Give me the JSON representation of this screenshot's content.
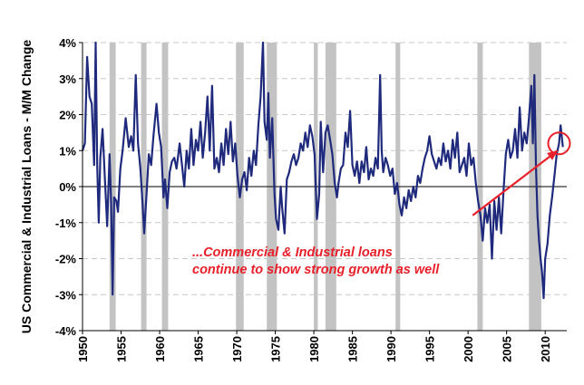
{
  "chart_data": {
    "type": "line",
    "ylabel": "US Commercial & Industrial Loans - M/M Change",
    "xlabel": "",
    "xlim": [
      1950,
      2012.8
    ],
    "ylim": [
      -4,
      4
    ],
    "x_ticks": [
      "1950",
      "1955",
      "1960",
      "1965",
      "1970",
      "1975",
      "1980",
      "1985",
      "1990",
      "1995",
      "2000",
      "2005",
      "2010"
    ],
    "y_ticks": [
      "4%",
      "3%",
      "2%",
      "1%",
      "0%",
      "-1%",
      "-2%",
      "-3%",
      "-4%"
    ],
    "grid": true,
    "line_color": "#1f2a7c",
    "recession_color": "#c3c3c3",
    "annotation_color": "#e8202a",
    "recessions": [
      [
        1953.5,
        1954.3
      ],
      [
        1957.6,
        1958.3
      ],
      [
        1960.3,
        1961.1
      ],
      [
        1969.9,
        1970.9
      ],
      [
        1973.9,
        1975.2
      ],
      [
        1980.0,
        1980.5
      ],
      [
        1981.5,
        1982.9
      ],
      [
        1990.6,
        1991.2
      ],
      [
        2001.2,
        2001.9
      ],
      [
        2007.9,
        2009.5
      ]
    ],
    "series": [
      {
        "values": [
          [
            1950.0,
            1.0
          ],
          [
            1950.3,
            1.2
          ],
          [
            1950.6,
            3.6
          ],
          [
            1950.9,
            2.5
          ],
          [
            1951.2,
            2.3
          ],
          [
            1951.5,
            0.6
          ],
          [
            1951.7,
            4.0
          ],
          [
            1951.9,
            0.6
          ],
          [
            1952.1,
            -1.0
          ],
          [
            1952.3,
            0.8
          ],
          [
            1952.6,
            1.6
          ],
          [
            1952.9,
            0.2
          ],
          [
            1953.2,
            -1.1
          ],
          [
            1953.5,
            0.9
          ],
          [
            1953.7,
            -0.4
          ],
          [
            1953.9,
            -3.0
          ],
          [
            1954.1,
            -0.3
          ],
          [
            1954.4,
            -0.4
          ],
          [
            1954.6,
            -0.7
          ],
          [
            1954.9,
            0.5
          ],
          [
            1955.2,
            1.0
          ],
          [
            1955.6,
            1.9
          ],
          [
            1956.0,
            1.1
          ],
          [
            1956.3,
            1.4
          ],
          [
            1956.6,
            1.0
          ],
          [
            1956.9,
            3.1
          ],
          [
            1957.2,
            1.2
          ],
          [
            1957.5,
            0.5
          ],
          [
            1957.8,
            -0.5
          ],
          [
            1958.0,
            -1.3
          ],
          [
            1958.3,
            -0.2
          ],
          [
            1958.6,
            0.9
          ],
          [
            1958.9,
            0.6
          ],
          [
            1959.2,
            1.4
          ],
          [
            1959.6,
            2.3
          ],
          [
            1959.9,
            1.5
          ],
          [
            1960.2,
            1.1
          ],
          [
            1960.5,
            -0.3
          ],
          [
            1960.7,
            0.2
          ],
          [
            1961.0,
            -0.6
          ],
          [
            1961.3,
            0.4
          ],
          [
            1961.6,
            0.7
          ],
          [
            1961.9,
            0.8
          ],
          [
            1962.2,
            0.5
          ],
          [
            1962.6,
            1.2
          ],
          [
            1962.9,
            0.6
          ],
          [
            1963.2,
            0.0
          ],
          [
            1963.5,
            1.0
          ],
          [
            1963.8,
            0.5
          ],
          [
            1964.1,
            1.6
          ],
          [
            1964.4,
            0.6
          ],
          [
            1964.7,
            1.3
          ],
          [
            1965.0,
            1.0
          ],
          [
            1965.3,
            1.8
          ],
          [
            1965.6,
            0.8
          ],
          [
            1965.9,
            1.5
          ],
          [
            1966.2,
            2.5
          ],
          [
            1966.5,
            1.0
          ],
          [
            1966.8,
            2.8
          ],
          [
            1967.1,
            0.5
          ],
          [
            1967.4,
            0.8
          ],
          [
            1967.7,
            0.4
          ],
          [
            1968.0,
            1.2
          ],
          [
            1968.3,
            0.6
          ],
          [
            1968.6,
            1.6
          ],
          [
            1968.9,
            0.9
          ],
          [
            1969.2,
            1.8
          ],
          [
            1969.5,
            0.7
          ],
          [
            1969.8,
            1.2
          ],
          [
            1970.1,
            0.3
          ],
          [
            1970.4,
            -0.3
          ],
          [
            1970.7,
            0.2
          ],
          [
            1971.0,
            0.4
          ],
          [
            1971.3,
            -0.1
          ],
          [
            1971.6,
            0.8
          ],
          [
            1971.9,
            0.3
          ],
          [
            1972.2,
            1.0
          ],
          [
            1972.5,
            0.6
          ],
          [
            1972.8,
            1.7
          ],
          [
            1973.1,
            2.5
          ],
          [
            1973.4,
            4.0
          ],
          [
            1973.6,
            1.8
          ],
          [
            1973.9,
            1.3
          ],
          [
            1974.1,
            2.6
          ],
          [
            1974.3,
            0.8
          ],
          [
            1974.6,
            1.9
          ],
          [
            1974.9,
            -0.2
          ],
          [
            1975.1,
            -0.9
          ],
          [
            1975.4,
            -1.2
          ],
          [
            1975.7,
            0.0
          ],
          [
            1975.9,
            -0.6
          ],
          [
            1976.2,
            -1.3
          ],
          [
            1976.5,
            0.2
          ],
          [
            1976.8,
            0.4
          ],
          [
            1977.1,
            0.7
          ],
          [
            1977.4,
            0.9
          ],
          [
            1977.7,
            0.6
          ],
          [
            1978.0,
            0.8
          ],
          [
            1978.3,
            1.2
          ],
          [
            1978.6,
            1.0
          ],
          [
            1978.9,
            1.5
          ],
          [
            1979.2,
            1.1
          ],
          [
            1979.5,
            1.7
          ],
          [
            1979.8,
            1.4
          ],
          [
            1980.1,
            0.9
          ],
          [
            1980.4,
            -0.9
          ],
          [
            1980.7,
            -0.2
          ],
          [
            1980.9,
            1.8
          ],
          [
            1981.2,
            0.4
          ],
          [
            1981.5,
            1.5
          ],
          [
            1981.8,
            1.7
          ],
          [
            1982.1,
            1.3
          ],
          [
            1982.4,
            0.9
          ],
          [
            1982.7,
            0.1
          ],
          [
            1983.0,
            -0.3
          ],
          [
            1983.2,
            0.1
          ],
          [
            1983.5,
            0.5
          ],
          [
            1983.8,
            0.6
          ],
          [
            1984.1,
            1.5
          ],
          [
            1984.4,
            1.1
          ],
          [
            1984.7,
            2.1
          ],
          [
            1985.0,
            0.6
          ],
          [
            1985.3,
            0.3
          ],
          [
            1985.6,
            0.7
          ],
          [
            1985.9,
            0.1
          ],
          [
            1986.2,
            0.7
          ],
          [
            1986.5,
            0.4
          ],
          [
            1986.8,
            1.1
          ],
          [
            1987.1,
            0.2
          ],
          [
            1987.4,
            0.5
          ],
          [
            1987.7,
            0.3
          ],
          [
            1988.0,
            0.8
          ],
          [
            1988.3,
            0.5
          ],
          [
            1988.6,
            3.1
          ],
          [
            1988.8,
            1.0
          ],
          [
            1989.0,
            0.4
          ],
          [
            1989.3,
            0.8
          ],
          [
            1989.6,
            0.6
          ],
          [
            1989.9,
            0.3
          ],
          [
            1990.2,
            0.5
          ],
          [
            1990.5,
            -0.2
          ],
          [
            1990.8,
            0.1
          ],
          [
            1991.1,
            -0.5
          ],
          [
            1991.4,
            -0.8
          ],
          [
            1991.7,
            -0.3
          ],
          [
            1992.0,
            -0.6
          ],
          [
            1992.3,
            -0.1
          ],
          [
            1992.6,
            -0.4
          ],
          [
            1992.9,
            0.0
          ],
          [
            1993.2,
            -0.3
          ],
          [
            1993.5,
            0.3
          ],
          [
            1993.8,
            0.1
          ],
          [
            1994.1,
            0.5
          ],
          [
            1994.4,
            0.8
          ],
          [
            1994.7,
            1.0
          ],
          [
            1995.0,
            1.4
          ],
          [
            1995.3,
            0.9
          ],
          [
            1995.6,
            0.7
          ],
          [
            1995.9,
            0.5
          ],
          [
            1996.2,
            0.8
          ],
          [
            1996.5,
            0.6
          ],
          [
            1996.8,
            1.2
          ],
          [
            1997.1,
            0.7
          ],
          [
            1997.4,
            1.0
          ],
          [
            1997.7,
            0.5
          ],
          [
            1998.0,
            1.3
          ],
          [
            1998.3,
            0.8
          ],
          [
            1998.6,
            1.5
          ],
          [
            1998.9,
            0.4
          ],
          [
            1999.2,
            0.6
          ],
          [
            1999.5,
            0.8
          ],
          [
            1999.8,
            0.3
          ],
          [
            2000.1,
            1.2
          ],
          [
            2000.4,
            0.6
          ],
          [
            2000.7,
            0.8
          ],
          [
            2001.0,
            0.1
          ],
          [
            2001.3,
            -0.4
          ],
          [
            2001.6,
            -0.8
          ],
          [
            2001.9,
            -1.5
          ],
          [
            2002.2,
            -0.6
          ],
          [
            2002.5,
            -1.0
          ],
          [
            2002.8,
            -0.5
          ],
          [
            2003.1,
            -2.0
          ],
          [
            2003.4,
            -0.4
          ],
          [
            2003.7,
            -1.2
          ],
          [
            2004.0,
            -0.3
          ],
          [
            2004.3,
            -1.3
          ],
          [
            2004.6,
            -0.1
          ],
          [
            2004.9,
            0.9
          ],
          [
            2005.2,
            1.3
          ],
          [
            2005.5,
            0.8
          ],
          [
            2005.8,
            1.0
          ],
          [
            2006.1,
            1.6
          ],
          [
            2006.4,
            0.8
          ],
          [
            2006.7,
            2.2
          ],
          [
            2007.0,
            1.0
          ],
          [
            2007.3,
            1.5
          ],
          [
            2007.6,
            1.2
          ],
          [
            2007.9,
            1.9
          ],
          [
            2008.2,
            2.8
          ],
          [
            2008.4,
            1.2
          ],
          [
            2008.6,
            3.1
          ],
          [
            2008.8,
            0.6
          ],
          [
            2009.0,
            -0.8
          ],
          [
            2009.2,
            -1.5
          ],
          [
            2009.4,
            -2.0
          ],
          [
            2009.6,
            -2.4
          ],
          [
            2009.8,
            -3.1
          ],
          [
            2010.0,
            -2.0
          ],
          [
            2010.3,
            -1.6
          ],
          [
            2010.6,
            -0.8
          ],
          [
            2010.9,
            -0.3
          ],
          [
            2011.2,
            0.3
          ],
          [
            2011.5,
            0.9
          ],
          [
            2011.8,
            1.2
          ],
          [
            2012.0,
            1.7
          ],
          [
            2012.3,
            1.1
          ]
        ]
      }
    ],
    "annotation": {
      "lines": [
        "...Commercial & Industrial loans",
        "continue to show strong growth as well"
      ],
      "arrow_from": [
        2000.6,
        -0.8
      ],
      "arrow_to": [
        2011.6,
        1.0
      ],
      "circle_center": [
        2011.8,
        1.2
      ]
    }
  }
}
